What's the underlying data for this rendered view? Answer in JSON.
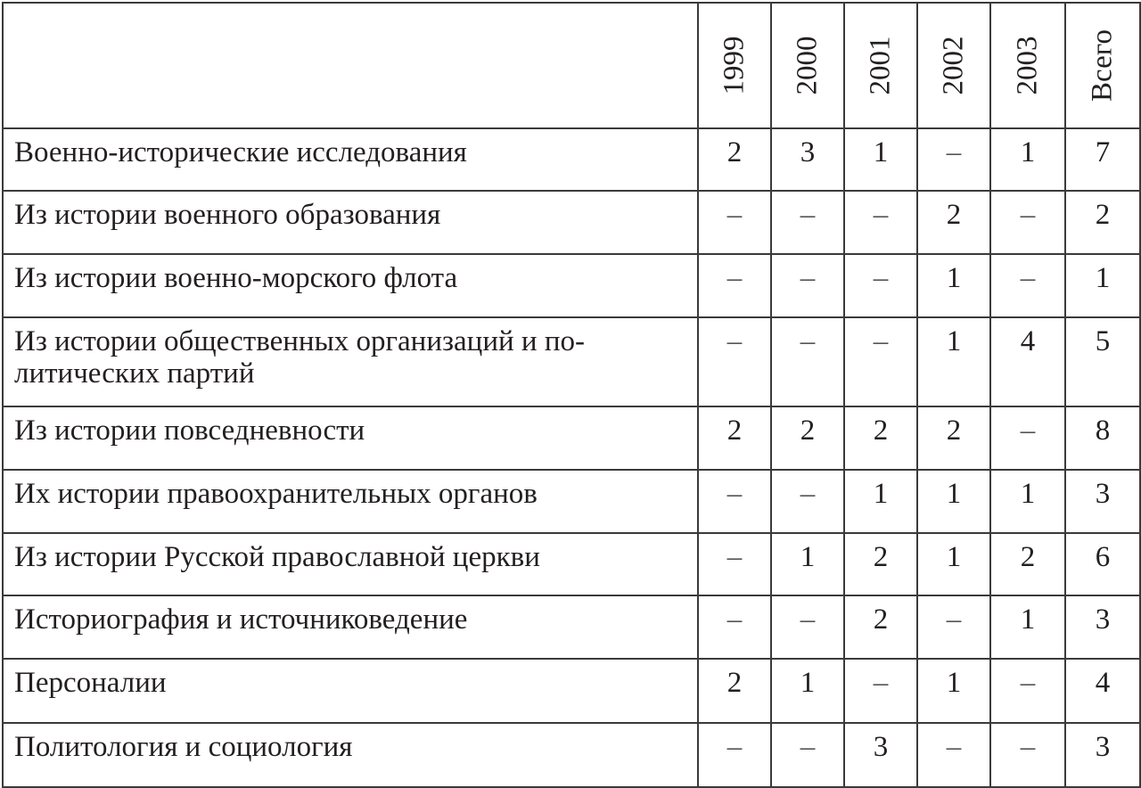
{
  "header": {
    "columns": [
      "1999",
      "2000",
      "2001",
      "2002",
      "2003",
      "Всего"
    ]
  },
  "rows": [
    {
      "name": "Военно-исторические исследования",
      "values": [
        "2",
        "3",
        "1",
        "–",
        "1",
        "7"
      ]
    },
    {
      "name": "Из истории военного образования",
      "values": [
        "–",
        "–",
        "–",
        "2",
        "–",
        "2"
      ]
    },
    {
      "name": "Из истории военно-морского флота",
      "values": [
        "–",
        "–",
        "–",
        "1",
        "–",
        "1"
      ]
    },
    {
      "name": "Из истории общественных организаций и по-\nлитических партий",
      "values": [
        "–",
        "–",
        "–",
        "1",
        "4",
        "5"
      ]
    },
    {
      "name": "Из истории повседневности",
      "values": [
        "2",
        "2",
        "2",
        "2",
        "–",
        "8"
      ]
    },
    {
      "name": "Их истории правоохранительных органов",
      "values": [
        "–",
        "–",
        "1",
        "1",
        "1",
        "3"
      ]
    },
    {
      "name": "Из истории Русской православной церкви",
      "values": [
        "–",
        "1",
        "2",
        "1",
        "2",
        "6"
      ]
    },
    {
      "name": "Историография и источниковедение",
      "values": [
        "–",
        "–",
        "2",
        "–",
        "1",
        "3"
      ]
    },
    {
      "name": "Персоналии",
      "values": [
        "2",
        "1",
        "–",
        "1",
        "–",
        "4"
      ]
    },
    {
      "name": "Политология и социология",
      "values": [
        "–",
        "–",
        "3",
        "–",
        "–",
        "3"
      ]
    }
  ]
}
